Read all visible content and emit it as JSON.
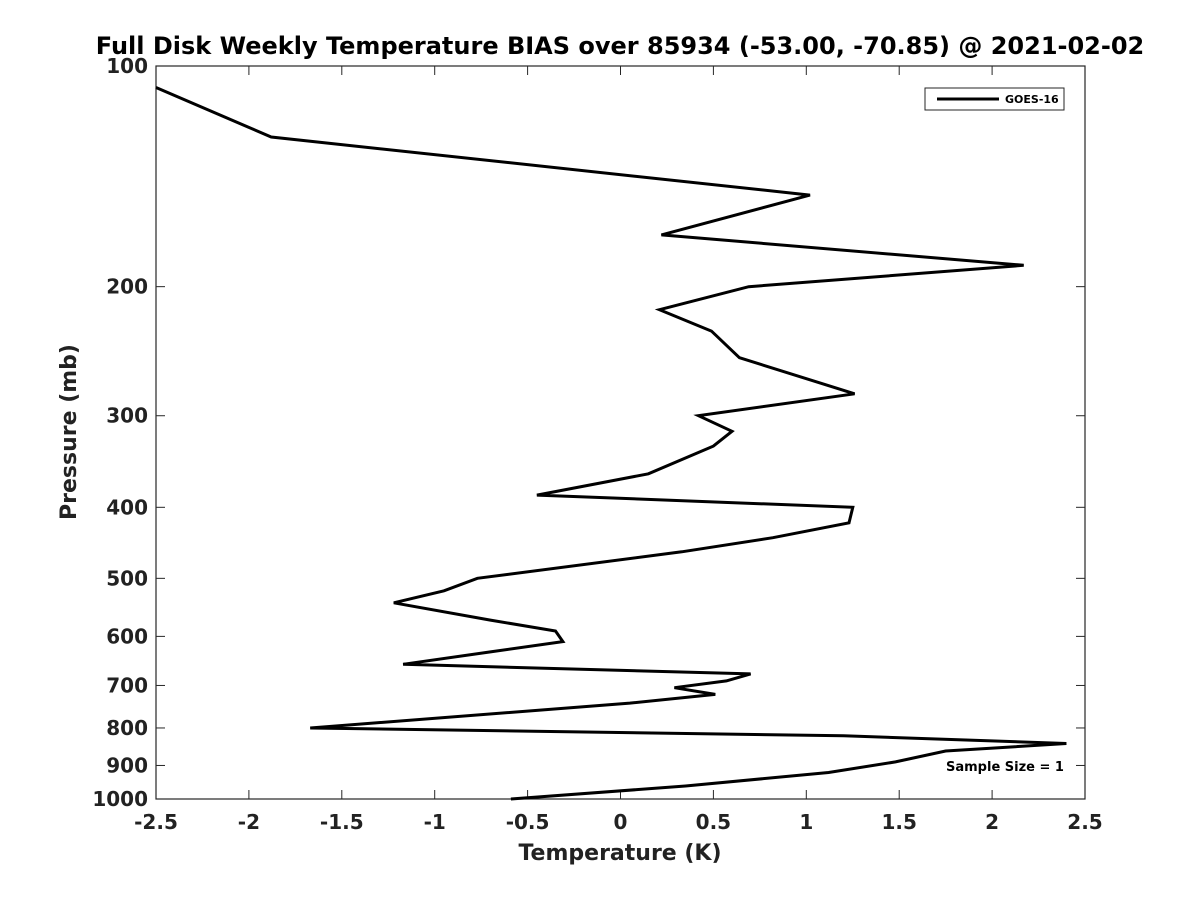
{
  "chart_data": {
    "type": "line",
    "title": "Full Disk Weekly Temperature BIAS over 85934 (-53.00, -70.85) @ 2021-02-02",
    "xlabel": "Temperature (K)",
    "ylabel": "Pressure (mb)",
    "xlim": [
      -2.5,
      2.5
    ],
    "ylim": [
      1000,
      100
    ],
    "yscale": "log",
    "x_ticks": [
      -2.5,
      -2,
      -1.5,
      -1,
      -0.5,
      0,
      0.5,
      1,
      1.5,
      2,
      2.5
    ],
    "x_tick_labels": [
      "-2.5",
      "-2",
      "-1.5",
      "-1",
      "-0.5",
      "0",
      "0.5",
      "1",
      "1.5",
      "2",
      "2.5"
    ],
    "y_ticks": [
      100,
      200,
      300,
      400,
      500,
      600,
      700,
      800,
      900,
      1000
    ],
    "y_tick_labels": [
      "100",
      "200",
      "300",
      "400",
      "500",
      "600",
      "700",
      "800",
      "900",
      "1000"
    ],
    "grid": false,
    "legend_position": "top-right",
    "series": [
      {
        "name": "GOES-16",
        "color": "#000000",
        "x": [
          -2.5,
          -1.88,
          1.02,
          0.22,
          2.17,
          0.69,
          0.21,
          0.49,
          0.64,
          1.26,
          0.42,
          0.6,
          0.5,
          0.15,
          -0.45,
          1.25,
          1.23,
          0.82,
          0.33,
          -0.77,
          -0.95,
          -1.22,
          -0.7,
          -0.35,
          -0.31,
          -0.7,
          -1.17,
          0.7,
          0.57,
          0.29,
          0.51,
          0.05,
          -1.67,
          1.2,
          2.4,
          1.75,
          1.48,
          1.12,
          0.35,
          -0.59
        ],
        "y": [
          107,
          125,
          150,
          170,
          187,
          200,
          215,
          230,
          250,
          280,
          300,
          315,
          330,
          360,
          385,
          400,
          420,
          440,
          460,
          500,
          520,
          540,
          570,
          590,
          610,
          630,
          655,
          675,
          690,
          705,
          720,
          740,
          800,
          820,
          840,
          860,
          890,
          920,
          960,
          1000
        ]
      }
    ],
    "legend_entries": [
      "GOES-16"
    ],
    "annotation": "Sample Size = 1"
  }
}
